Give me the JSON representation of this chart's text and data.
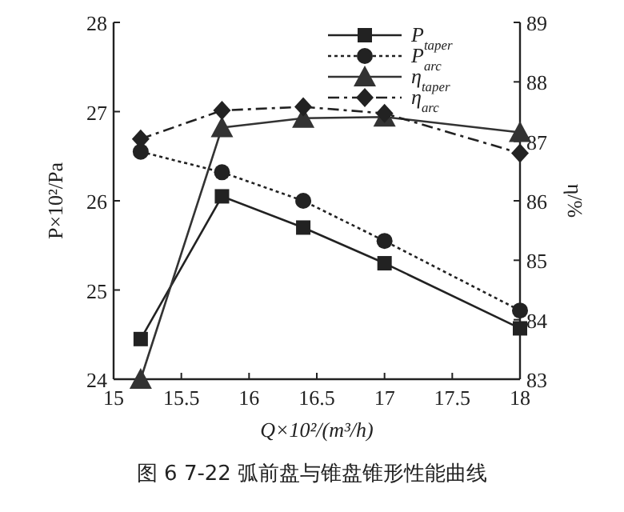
{
  "chart_data": {
    "type": "line",
    "xlabel": "Q×10²/(m³/h)",
    "ylabel": "P×10²/Pa",
    "y2label": "η/%",
    "annotations": [
      "图 6  7-22 弧前盘与锥盘锥形性能曲线"
    ],
    "x": [
      15.2,
      15.8,
      16.4,
      17,
      18
    ],
    "xlim": [
      15,
      18
    ],
    "xticks": [
      15,
      15.5,
      16,
      16.5,
      17,
      17.5,
      18
    ],
    "ylim": [
      24,
      28
    ],
    "yticks": [
      24,
      25,
      26,
      27,
      28
    ],
    "y2lim": [
      83,
      89
    ],
    "y2ticks": [
      83,
      84,
      85,
      86,
      87,
      88,
      89
    ],
    "legend": "top right",
    "grid": false,
    "series": [
      {
        "name": "P$_{taper}$",
        "color": "#222222",
        "values": [
          24.45,
          26.05,
          25.7,
          25.3,
          24.57
        ],
        "marker": "square",
        "line_style": "solid"
      },
      {
        "name": "P$_{arc}$",
        "color": "#222222",
        "values": [
          26.55,
          26.32,
          26.0,
          25.55,
          24.77
        ],
        "marker": "circle",
        "line_style": "dotted"
      },
      {
        "name": "η$_{taper}$",
        "color": "#333333",
        "values": [
          83,
          87.23,
          87.39,
          87.41,
          87.15
        ],
        "marker": "triangle",
        "line_style": "solid",
        "axis": "y2"
      },
      {
        "name": "η$_{arc}$",
        "color": "#222222",
        "values": [
          87.04,
          87.52,
          87.58,
          87.47,
          86.8
        ],
        "marker": "diamond",
        "line_style": "dashdot",
        "axis": "y2"
      }
    ]
  }
}
